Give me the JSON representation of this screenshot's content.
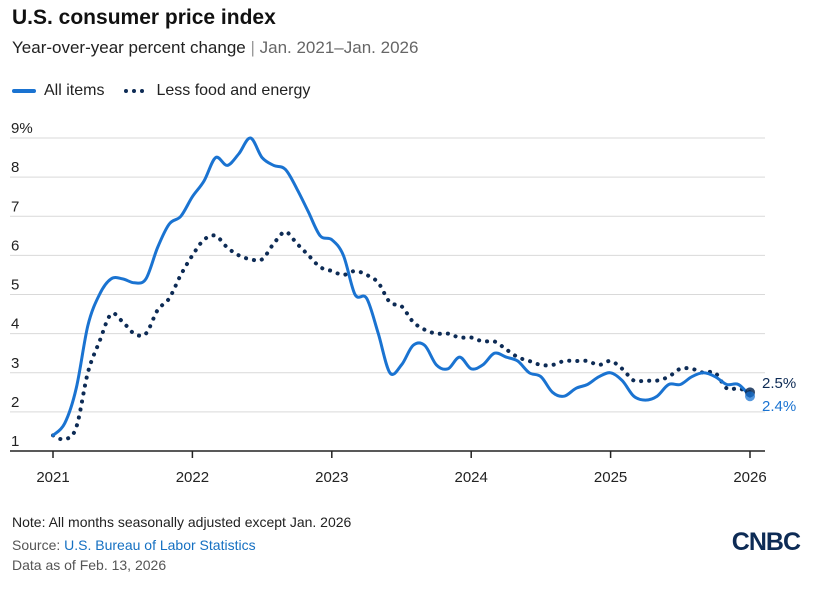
{
  "header": {
    "title": "U.S. consumer price index",
    "subtitle": "Year-over-year percent change",
    "subtitle_sep": "|",
    "subtitle_range": "Jan. 2021–Jan. 2026"
  },
  "legend": {
    "all_items": "All items",
    "core": "Less food and energy"
  },
  "colors": {
    "all_items": "#1a73d1",
    "core": "#0d2b55",
    "grid": "#d9d9d9",
    "axis": "#222222"
  },
  "chart_data": {
    "type": "line",
    "title": "U.S. consumer price index",
    "subtitle": "Year-over-year percent change",
    "xlabel": "",
    "ylabel": "",
    "x_start": "2021-01",
    "x_end": "2026-01",
    "xlim": [
      2021.0,
      2026.0
    ],
    "ylim": [
      1,
      9
    ],
    "yticks": [
      1,
      2,
      3,
      4,
      5,
      6,
      7,
      8,
      9
    ],
    "ytick_labels": [
      "1",
      "2",
      "3",
      "4",
      "5",
      "6",
      "7",
      "8",
      "9%"
    ],
    "xticks": [
      2021,
      2022,
      2023,
      2024,
      2025,
      2026
    ],
    "xtick_labels": [
      "2021",
      "2022",
      "2023",
      "2024",
      "2025",
      "2026"
    ],
    "grid": true,
    "legend_position": "top-left",
    "series": [
      {
        "name": "All items",
        "style": "solid",
        "values": [
          1.4,
          1.7,
          2.6,
          4.2,
          5.0,
          5.4,
          5.4,
          5.3,
          5.4,
          6.2,
          6.8,
          7.0,
          7.5,
          7.9,
          8.5,
          8.3,
          8.6,
          9.0,
          8.5,
          8.3,
          8.2,
          7.7,
          7.1,
          6.5,
          6.4,
          6.0,
          5.0,
          4.9,
          4.0,
          3.0,
          3.2,
          3.7,
          3.7,
          3.2,
          3.1,
          3.4,
          3.1,
          3.2,
          3.5,
          3.4,
          3.3,
          3.0,
          2.9,
          2.5,
          2.4,
          2.6,
          2.7,
          2.9,
          3.0,
          2.8,
          2.4,
          2.3,
          2.4,
          2.7,
          2.7,
          2.9,
          3.0,
          2.9,
          2.7,
          2.7,
          2.4
        ],
        "end_label": "2.4%"
      },
      {
        "name": "Less food and energy",
        "style": "dotted",
        "values": [
          1.4,
          1.3,
          1.6,
          3.0,
          3.8,
          4.5,
          4.3,
          4.0,
          4.0,
          4.6,
          4.9,
          5.5,
          6.0,
          6.4,
          6.5,
          6.2,
          6.0,
          5.9,
          5.9,
          6.3,
          6.6,
          6.3,
          6.0,
          5.7,
          5.6,
          5.5,
          5.6,
          5.5,
          5.3,
          4.8,
          4.7,
          4.3,
          4.1,
          4.0,
          4.0,
          3.9,
          3.9,
          3.8,
          3.8,
          3.6,
          3.4,
          3.3,
          3.2,
          3.2,
          3.3,
          3.3,
          3.3,
          3.2,
          3.3,
          3.1,
          2.8,
          2.8,
          2.8,
          2.9,
          3.1,
          3.1,
          3.0,
          3.0,
          2.6,
          2.6,
          2.5
        ],
        "end_label": "2.5%"
      }
    ]
  },
  "footer": {
    "note": "Note: All months seasonally adjusted except Jan. 2026",
    "source_prefix": "Source:",
    "source_link": "U.S. Bureau of Labor Statistics",
    "as_of": "Data as of Feb. 13, 2026"
  },
  "brand": {
    "logo_text": "CNBC"
  }
}
